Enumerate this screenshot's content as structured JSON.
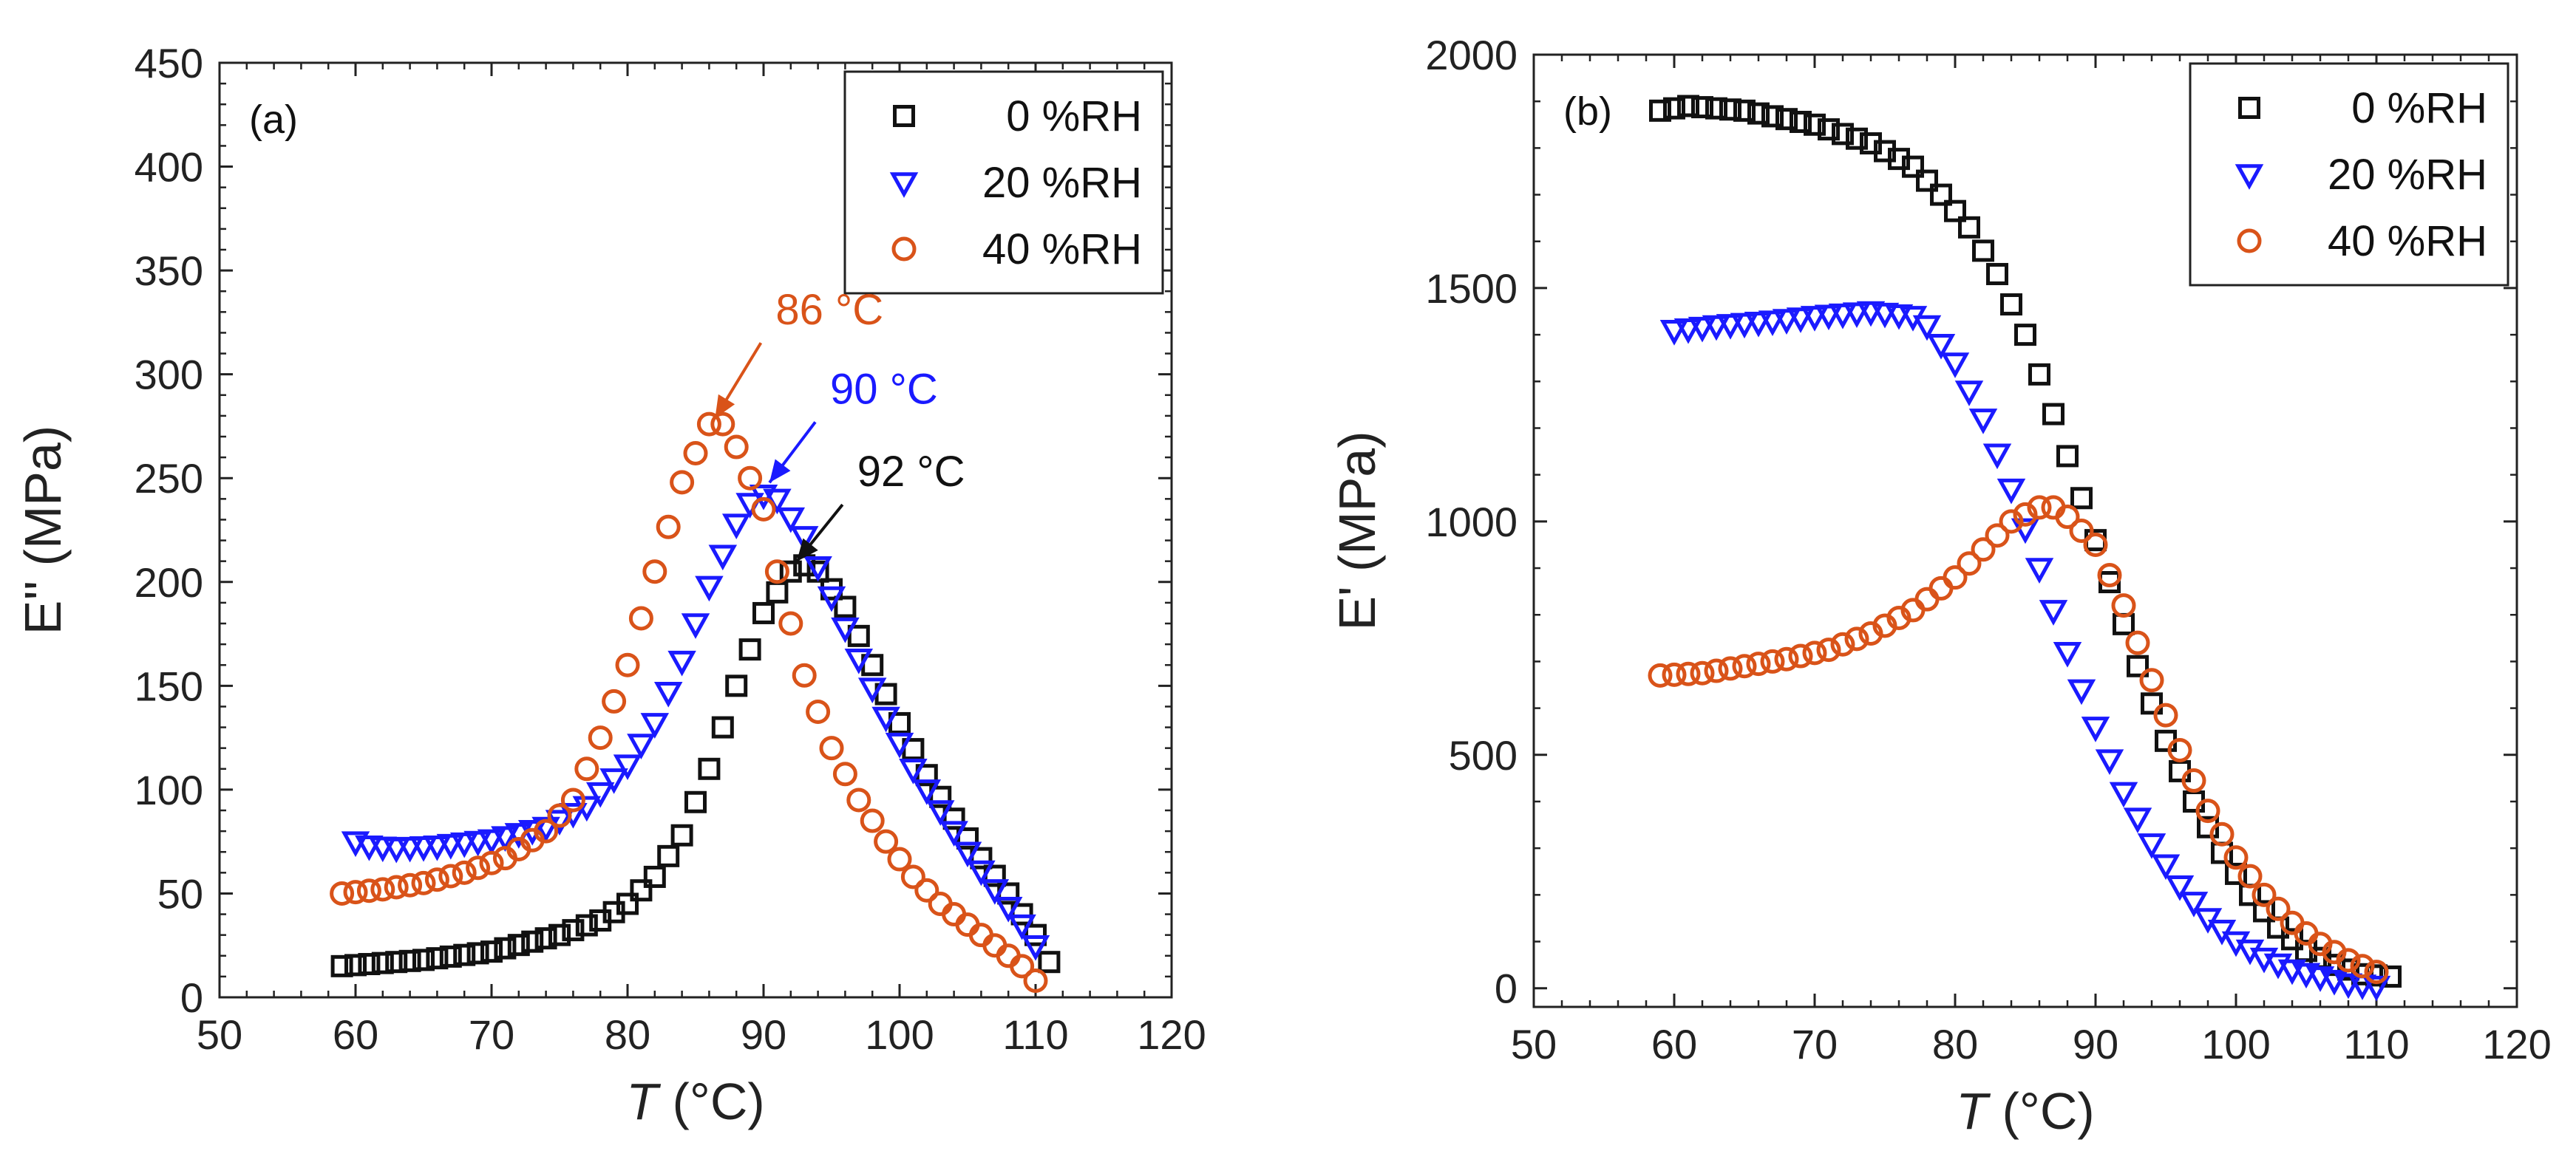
{
  "colors": {
    "s0": "#111111",
    "s20": "#1a1aff",
    "s40": "#d95319",
    "axis": "#222222"
  },
  "chart_data": [
    {
      "type": "scatter",
      "panel_label": "(a)",
      "xlabel_italic": "T",
      "xlabel_unit": " (°C)",
      "ylabel": "E'' (MPa)",
      "xlim": [
        50,
        120
      ],
      "ylim": [
        0,
        450
      ],
      "xticks": [
        50,
        60,
        70,
        80,
        90,
        100,
        110,
        120
      ],
      "yticks": [
        0,
        50,
        100,
        150,
        200,
        250,
        300,
        350,
        400,
        450
      ],
      "legend": [
        "0 %RH",
        "20 %RH",
        "40 %RH"
      ],
      "legend_position": "top-right",
      "series": [
        {
          "name": "0 %RH",
          "marker": "square",
          "color": "#111111",
          "curve": [
            [
              59,
              15
            ],
            [
              65,
              18
            ],
            [
              70,
              22
            ],
            [
              75,
              30
            ],
            [
              78,
              37
            ],
            [
              80,
              45
            ],
            [
              82,
              58
            ],
            [
              84,
              78
            ],
            [
              86,
              110
            ],
            [
              88,
              150
            ],
            [
              90,
              185
            ],
            [
              92,
              205
            ],
            [
              93,
              208
            ],
            [
              94,
              205
            ],
            [
              96,
              188
            ],
            [
              98,
              160
            ],
            [
              100,
              132
            ],
            [
              102,
              107
            ],
            [
              104,
              86
            ],
            [
              106,
              67
            ],
            [
              108,
              50
            ],
            [
              110,
              30
            ],
            [
              111,
              17
            ]
          ]
        },
        {
          "name": "20 %RH",
          "marker": "triangle-down",
          "color": "#1a1aff",
          "curve": [
            [
              60,
              75
            ],
            [
              61,
              73
            ],
            [
              63,
              72
            ],
            [
              66,
              73
            ],
            [
              70,
              76
            ],
            [
              74,
              82
            ],
            [
              77,
              92
            ],
            [
              80,
              112
            ],
            [
              82,
              132
            ],
            [
              84,
              162
            ],
            [
              86,
              198
            ],
            [
              88,
              228
            ],
            [
              89.5,
              243
            ],
            [
              91,
              240
            ],
            [
              93,
              222
            ],
            [
              95,
              193
            ],
            [
              97,
              163
            ],
            [
              99,
              135
            ],
            [
              101,
              110
            ],
            [
              103,
              90
            ],
            [
              105,
              70
            ],
            [
              107,
              52
            ],
            [
              109,
              35
            ],
            [
              110,
              25
            ]
          ]
        },
        {
          "name": "40 %RH",
          "marker": "circle",
          "color": "#d95319",
          "curve": [
            [
              59,
              50
            ],
            [
              62,
              52
            ],
            [
              65,
              55
            ],
            [
              68,
              60
            ],
            [
              71,
              67
            ],
            [
              74,
              80
            ],
            [
              76,
              95
            ],
            [
              78,
              125
            ],
            [
              80,
              160
            ],
            [
              82,
              205
            ],
            [
              84,
              248
            ],
            [
              85,
              262
            ],
            [
              86,
              276
            ],
            [
              87,
              276
            ],
            [
              88,
              265
            ],
            [
              89,
              250
            ],
            [
              90,
              235
            ],
            [
              91,
              205
            ],
            [
              92,
              180
            ],
            [
              93,
              155
            ],
            [
              95,
              120
            ],
            [
              97,
              95
            ],
            [
              99,
              75
            ],
            [
              101,
              58
            ],
            [
              103,
              45
            ],
            [
              105,
              35
            ],
            [
              107,
              25
            ],
            [
              109,
              15
            ],
            [
              110,
              8
            ]
          ]
        }
      ],
      "annotations": [
        {
          "text": "86 °C",
          "x": 86,
          "y": 276,
          "color": "#d95319"
        },
        {
          "text": "90 °C",
          "x": 90,
          "y": 245,
          "color": "#1a1aff"
        },
        {
          "text": "92 °C",
          "x": 92,
          "y": 207,
          "color": "#111111"
        }
      ]
    },
    {
      "type": "scatter",
      "panel_label": "(b)",
      "xlabel_italic": "T",
      "xlabel_unit": " (°C)",
      "ylabel": "E' (MPa)",
      "xlim": [
        50,
        120
      ],
      "ylim": [
        -40,
        2000
      ],
      "xticks": [
        50,
        60,
        70,
        80,
        90,
        100,
        110,
        120
      ],
      "yticks": [
        0,
        500,
        1000,
        1500,
        2000
      ],
      "legend": [
        "0 %RH",
        "20 %RH",
        "40 %RH"
      ],
      "legend_position": "top-right",
      "series": [
        {
          "name": "0 %RH",
          "marker": "square",
          "color": "#111111",
          "curve": [
            [
              59,
              1880
            ],
            [
              61,
              1890
            ],
            [
              65,
              1880
            ],
            [
              70,
              1850
            ],
            [
              74,
              1810
            ],
            [
              77,
              1760
            ],
            [
              79,
              1700
            ],
            [
              81,
              1630
            ],
            [
              83,
              1530
            ],
            [
              85,
              1400
            ],
            [
              87,
              1230
            ],
            [
              89,
              1050
            ],
            [
              91,
              870
            ],
            [
              93,
              690
            ],
            [
              95,
              530
            ],
            [
              97,
              400
            ],
            [
              99,
              290
            ],
            [
              101,
              200
            ],
            [
              103,
              130
            ],
            [
              105,
              80
            ],
            [
              107,
              50
            ],
            [
              109,
              30
            ],
            [
              111,
              25
            ]
          ]
        },
        {
          "name": "20 %RH",
          "marker": "triangle-down",
          "color": "#1a1aff",
          "curve": [
            [
              60,
              1410
            ],
            [
              63,
              1420
            ],
            [
              67,
              1430
            ],
            [
              70,
              1440
            ],
            [
              74,
              1450
            ],
            [
              77,
              1440
            ],
            [
              78,
              1420
            ],
            [
              80,
              1340
            ],
            [
              82,
              1220
            ],
            [
              84,
              1070
            ],
            [
              86,
              900
            ],
            [
              88,
              720
            ],
            [
              90,
              560
            ],
            [
              92,
              420
            ],
            [
              94,
              310
            ],
            [
              96,
              220
            ],
            [
              98,
              150
            ],
            [
              100,
              100
            ],
            [
              102,
              65
            ],
            [
              104,
              40
            ],
            [
              106,
              25
            ],
            [
              108,
              10
            ],
            [
              110,
              5
            ]
          ]
        },
        {
          "name": "40 %RH",
          "marker": "circle",
          "color": "#d95319",
          "curve": [
            [
              59,
              670
            ],
            [
              62,
              675
            ],
            [
              65,
              690
            ],
            [
              68,
              705
            ],
            [
              71,
              725
            ],
            [
              74,
              760
            ],
            [
              77,
              810
            ],
            [
              80,
              880
            ],
            [
              82,
              940
            ],
            [
              84,
              1000
            ],
            [
              86,
              1030
            ],
            [
              87,
              1030
            ],
            [
              88,
              1010
            ],
            [
              90,
              950
            ],
            [
              92,
              820
            ],
            [
              94,
              660
            ],
            [
              96,
              510
            ],
            [
              98,
              380
            ],
            [
              100,
              280
            ],
            [
              102,
              200
            ],
            [
              104,
              140
            ],
            [
              106,
              95
            ],
            [
              108,
              60
            ],
            [
              110,
              35
            ]
          ]
        }
      ]
    }
  ]
}
